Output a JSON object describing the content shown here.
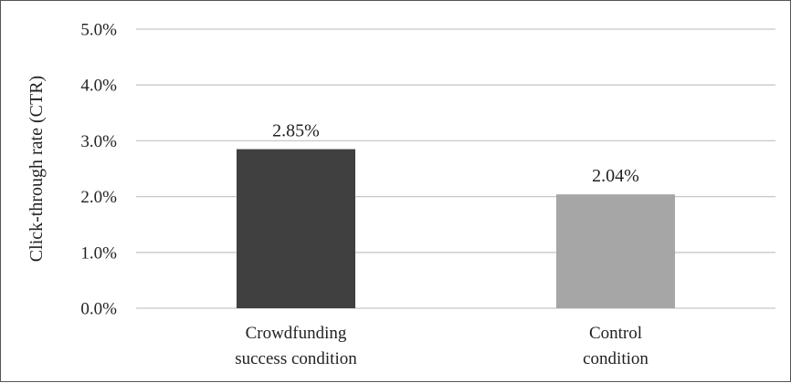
{
  "chart_data": {
    "type": "bar",
    "title": "",
    "xlabel": "",
    "ylabel": "Click-through rate (CTR)",
    "ylim": [
      0,
      5.0
    ],
    "y_ticks": [
      "0.0%",
      "1.0%",
      "2.0%",
      "3.0%",
      "4.0%",
      "5.0%"
    ],
    "y_tick_values": [
      0,
      1,
      2,
      3,
      4,
      5
    ],
    "grid": true,
    "legend": "none",
    "categories": [
      [
        "Crowdfunding",
        "success condition"
      ],
      [
        "Control",
        "condition"
      ]
    ],
    "values": [
      2.85,
      2.04
    ],
    "value_labels": [
      "2.85%",
      "2.04%"
    ],
    "colors": [
      "#404040",
      "#a6a6a6"
    ],
    "gridline_color": "#c8c8c8",
    "text_color": "#222222"
  }
}
